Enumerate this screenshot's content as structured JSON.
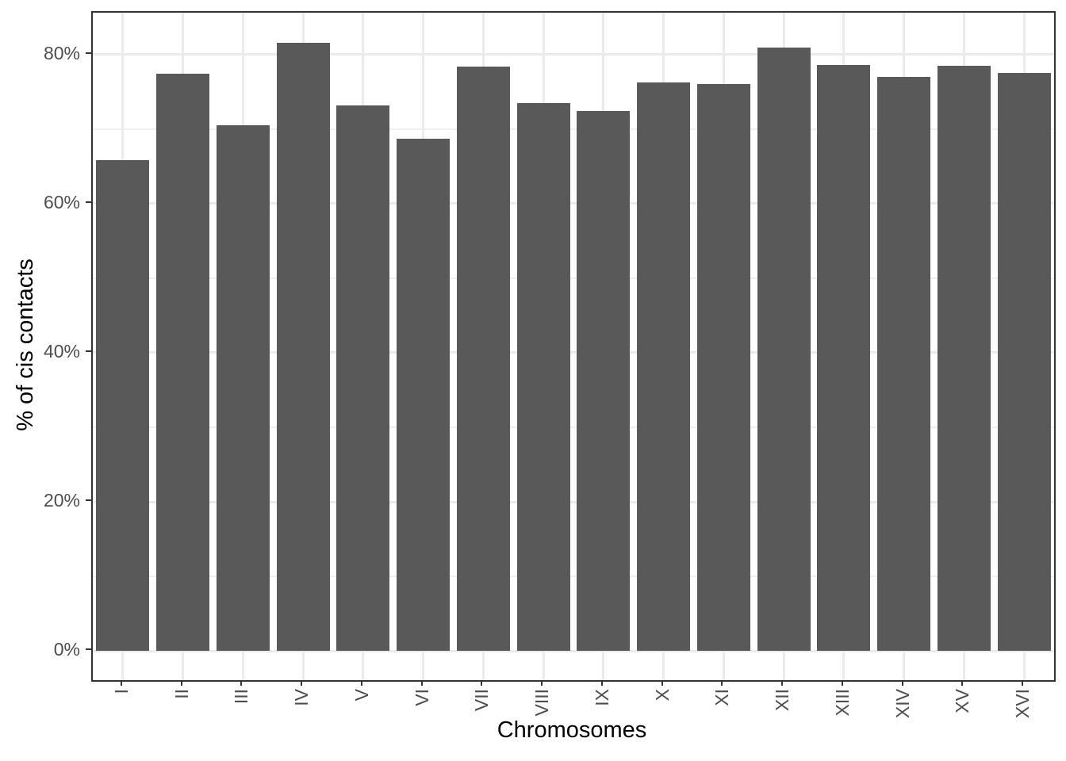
{
  "chart_data": {
    "type": "bar",
    "xlabel": "Chromosomes",
    "ylabel": "% of cis contacts",
    "categories": [
      "I",
      "II",
      "III",
      "IV",
      "V",
      "VI",
      "VII",
      "VIII",
      "IX",
      "X",
      "XI",
      "XII",
      "XIII",
      "XIV",
      "XV",
      "XVI"
    ],
    "values": [
      65.8,
      77.4,
      70.5,
      81.6,
      73.2,
      68.7,
      78.4,
      73.5,
      72.4,
      76.2,
      76.0,
      80.9,
      78.6,
      77.0,
      78.5,
      77.5
    ],
    "value_unit": "%",
    "ylim": [
      -3.9,
      85.6
    ],
    "yticks": [
      {
        "value": 0,
        "label": "0%"
      },
      {
        "value": 20,
        "label": "20%"
      },
      {
        "value": 40,
        "label": "40%"
      },
      {
        "value": 60,
        "label": "60%"
      },
      {
        "value": 80,
        "label": "80%"
      }
    ],
    "yticks_minor": [
      10,
      30,
      50,
      70
    ],
    "bar_width_fraction": 0.885,
    "x_tick_label_rotation_deg": -90,
    "grid": true,
    "legend_position": "none",
    "style": {
      "bar_color": "#595959",
      "panel_background": "#ffffff",
      "panel_border_color": "#333333",
      "grid_major_color": "#ebebeb",
      "grid_minor_color": "#f0f0f0",
      "tick_mark_color": "#333333",
      "tick_label_color": "#4d4d4d",
      "axis_title_color": "#000000"
    }
  }
}
